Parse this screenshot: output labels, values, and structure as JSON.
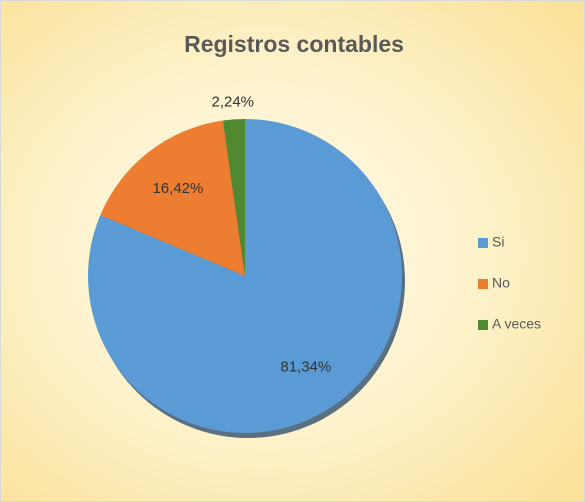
{
  "chart_data": {
    "type": "pie",
    "title": "Registros contables",
    "categories": [
      "Si",
      "No",
      "A veces"
    ],
    "values": [
      81.34,
      16.42,
      2.24
    ],
    "value_labels": [
      "81,34%",
      "16,42%",
      "2,24%"
    ],
    "colors": [
      "#5b9bd5",
      "#ed7d31",
      "#4f8a31"
    ],
    "legend": "right"
  }
}
